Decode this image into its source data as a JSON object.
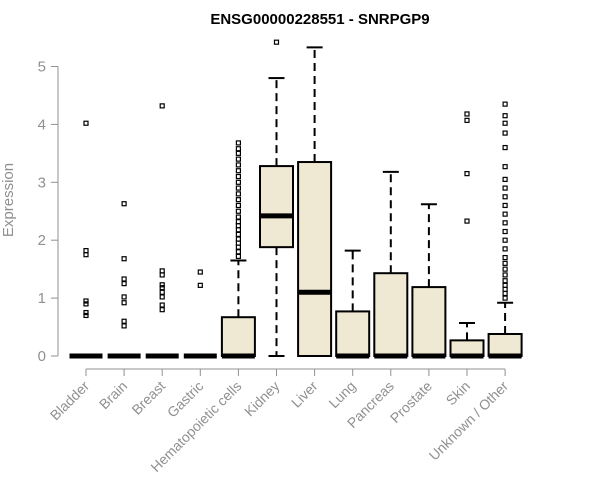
{
  "chart_data": {
    "type": "boxplot",
    "title": "ENSG00000228551 - SNRPGP9",
    "xlabel": "",
    "ylabel": "Expression",
    "ylim": [
      0,
      5.5
    ],
    "yticks": [
      0,
      1,
      2,
      3,
      4,
      5
    ],
    "grid": false,
    "colors": {
      "box_fill": "#efe8d2",
      "stroke": "#000000",
      "axis": "#909090",
      "label": "#909090"
    },
    "categories": [
      "Bladder",
      "Brain",
      "Breast",
      "Gastric",
      "Hematopoietic cells",
      "Kidney",
      "Liver",
      "Lung",
      "Pancreas",
      "Prostate",
      "Skin",
      "Unknown / Other"
    ],
    "boxes": [
      {
        "category": "Bladder",
        "min": 0,
        "q1": 0,
        "median": 0,
        "q3": 0,
        "max": 0,
        "outliers": [
          0.7,
          0.75,
          0.9,
          0.95,
          1.75,
          1.82,
          4.02
        ]
      },
      {
        "category": "Brain",
        "min": 0,
        "q1": 0,
        "median": 0,
        "q3": 0,
        "max": 0,
        "outliers": [
          0.52,
          0.6,
          0.92,
          1.02,
          1.25,
          1.33,
          1.68,
          2.63
        ]
      },
      {
        "category": "Breast",
        "min": 0,
        "q1": 0,
        "median": 0,
        "q3": 0,
        "max": 0,
        "outliers": [
          0.8,
          0.88,
          1.02,
          1.1,
          1.18,
          1.23,
          1.4,
          1.47,
          4.32
        ]
      },
      {
        "category": "Gastric",
        "min": 0,
        "q1": 0,
        "median": 0,
        "q3": 0,
        "max": 0,
        "outliers": [
          1.22,
          1.45
        ]
      },
      {
        "category": "Hematopoietic cells",
        "min": 0,
        "q1": 0,
        "median": 0,
        "q3": 0.67,
        "max": 1.65,
        "outliers": [
          1.72,
          1.8,
          1.88,
          1.95,
          2.02,
          2.1,
          2.18,
          2.25,
          2.32,
          2.4,
          2.5,
          2.6,
          2.7,
          2.8,
          2.9,
          3.0,
          3.1,
          3.2,
          3.3,
          3.4,
          3.5,
          3.58,
          3.68
        ]
      },
      {
        "category": "Kidney",
        "min": 0,
        "q1": 1.88,
        "median": 2.42,
        "q3": 3.28,
        "max": 4.8,
        "outliers": [
          5.42
        ]
      },
      {
        "category": "Liver",
        "min": 0,
        "q1": 0,
        "median": 1.1,
        "q3": 3.35,
        "max": 5.33,
        "outliers": []
      },
      {
        "category": "Lung",
        "min": 0,
        "q1": 0,
        "median": 0,
        "q3": 0.77,
        "max": 1.82,
        "outliers": []
      },
      {
        "category": "Pancreas",
        "min": 0,
        "q1": 0,
        "median": 0,
        "q3": 1.43,
        "max": 3.18,
        "outliers": []
      },
      {
        "category": "Prostate",
        "min": 0,
        "q1": 0,
        "median": 0,
        "q3": 1.19,
        "max": 2.62,
        "outliers": []
      },
      {
        "category": "Skin",
        "min": 0,
        "q1": 0,
        "median": 0,
        "q3": 0.27,
        "max": 0.57,
        "outliers": [
          2.33,
          3.15,
          4.07,
          4.18
        ]
      },
      {
        "category": "Unknown / Other",
        "min": 0,
        "q1": 0,
        "median": 0,
        "q3": 0.38,
        "max": 0.92,
        "outliers": [
          1.0,
          1.08,
          1.15,
          1.22,
          1.3,
          1.4,
          1.5,
          1.6,
          1.7,
          1.85,
          2.0,
          2.15,
          2.3,
          2.45,
          2.6,
          2.75,
          2.9,
          3.05,
          3.27,
          3.6,
          3.85,
          4.02,
          4.15,
          4.35
        ]
      }
    ]
  }
}
